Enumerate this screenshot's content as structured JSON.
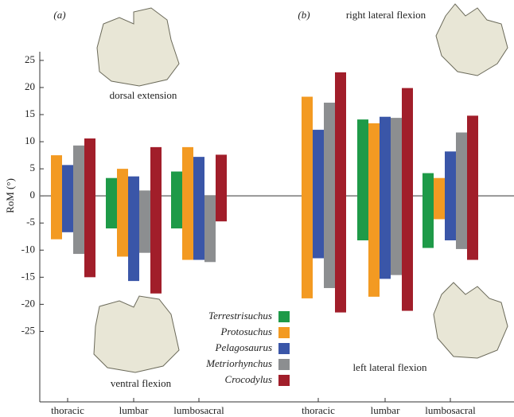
{
  "chart_data": {
    "type": "range-bar",
    "ylabel": "RoM (°)",
    "ylim": [
      -38,
      26.6
    ],
    "yticks": [
      25,
      20,
      15,
      10,
      5,
      0,
      -5,
      -10,
      -15,
      -20,
      -25
    ],
    "categories": [
      "thoracic",
      "lumbar",
      "lumbosacral",
      "thoracic",
      "lumbar",
      "lumbosacral"
    ],
    "panels": [
      {
        "label": "(a)",
        "annotations": [
          "dorsal extension",
          "ventral flexion"
        ]
      },
      {
        "label": "(b)",
        "annotations": [
          "right lateral flexion",
          "left lateral flexion"
        ]
      }
    ],
    "series": [
      {
        "name": "Terrestrisuchus",
        "color": "#1e9a48",
        "low": [
          null,
          -6,
          -6,
          null,
          -8.2,
          -9.6
        ],
        "high": [
          null,
          3.3,
          4.5,
          null,
          14.1,
          4.2
        ]
      },
      {
        "name": "Protosuchus",
        "color": "#f39a22",
        "low": [
          -8,
          -11.2,
          -11.8,
          -18.9,
          -18.6,
          -4.3
        ],
        "high": [
          7.5,
          5,
          9,
          18.3,
          13.4,
          3.3
        ]
      },
      {
        "name": "Pelagosaurus",
        "color": "#3a56a8",
        "low": [
          -6.7,
          -15.7,
          -11.8,
          -11.5,
          -15.3,
          -8.2
        ],
        "high": [
          5.7,
          3.6,
          7.2,
          12.2,
          14.6,
          8.2
        ]
      },
      {
        "name": "Metriorhynchus",
        "color": "#8c8e90",
        "low": [
          -10.7,
          -10.5,
          -12.2,
          -17,
          -14.6,
          -9.8
        ],
        "high": [
          9.3,
          1,
          0,
          17.2,
          14.4,
          11.7
        ]
      },
      {
        "name": "Crocodylus",
        "color": "#a11e2a",
        "low": [
          -15,
          -18,
          -4.7,
          -21.5,
          -21.2,
          -11.8
        ],
        "high": [
          10.6,
          9,
          7.6,
          22.8,
          19.9,
          14.8
        ]
      }
    ]
  }
}
